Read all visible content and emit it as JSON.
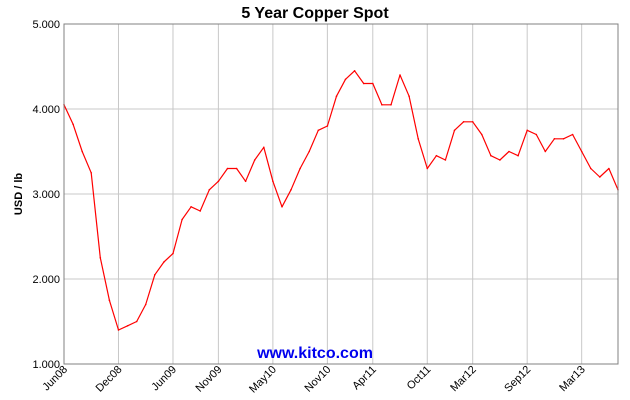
{
  "chart_data": {
    "type": "line",
    "title": "5 Year Copper Spot",
    "xlabel": "",
    "ylabel": "USD / lb",
    "ylim": [
      1.0,
      5.0
    ],
    "yticks": [
      "1.000",
      "2.000",
      "3.000",
      "4.000",
      "5.000"
    ],
    "xlim": [
      "2008-06",
      "2013-07"
    ],
    "xticks": [
      "Jun08",
      "Dec08",
      "Jun09",
      "Nov09",
      "May10",
      "Nov10",
      "Apr11",
      "Oct11",
      "Mar12",
      "Sep12",
      "Mar13"
    ],
    "grid": true,
    "line_color": "#ff0000",
    "series": [
      {
        "name": "",
        "x": [
          "2008-06",
          "2008-07",
          "2008-08",
          "2008-09",
          "2008-10",
          "2008-11",
          "2008-12",
          "2009-01",
          "2009-02",
          "2009-03",
          "2009-04",
          "2009-05",
          "2009-06",
          "2009-07",
          "2009-08",
          "2009-09",
          "2009-10",
          "2009-11",
          "2009-12",
          "2010-01",
          "2010-02",
          "2010-03",
          "2010-04",
          "2010-05",
          "2010-06",
          "2010-07",
          "2010-08",
          "2010-09",
          "2010-10",
          "2010-11",
          "2010-12",
          "2011-01",
          "2011-02",
          "2011-03",
          "2011-04",
          "2011-05",
          "2011-06",
          "2011-07",
          "2011-08",
          "2011-09",
          "2011-10",
          "2011-11",
          "2011-12",
          "2012-01",
          "2012-02",
          "2012-03",
          "2012-04",
          "2012-05",
          "2012-06",
          "2012-07",
          "2012-08",
          "2012-09",
          "2012-10",
          "2012-11",
          "2012-12",
          "2013-01",
          "2013-02",
          "2013-03",
          "2013-04",
          "2013-05",
          "2013-06",
          "2013-07"
        ],
        "values": [
          4.05,
          3.82,
          3.5,
          3.25,
          2.25,
          1.75,
          1.4,
          1.45,
          1.5,
          1.7,
          2.05,
          2.2,
          2.3,
          2.7,
          2.85,
          2.8,
          3.05,
          3.15,
          3.3,
          3.3,
          3.15,
          3.4,
          3.55,
          3.15,
          2.85,
          3.05,
          3.3,
          3.5,
          3.75,
          3.8,
          4.15,
          4.35,
          4.45,
          4.3,
          4.3,
          4.05,
          4.05,
          4.4,
          4.15,
          3.65,
          3.3,
          3.45,
          3.4,
          3.75,
          3.85,
          3.85,
          3.7,
          3.45,
          3.4,
          3.5,
          3.45,
          3.75,
          3.7,
          3.5,
          3.65,
          3.65,
          3.7,
          3.5,
          3.3,
          3.2,
          3.3,
          3.05
        ]
      }
    ]
  },
  "watermark": "www.kitco.com",
  "colors": {
    "line": "#ff0000",
    "grid": "#c8c8c8",
    "frame": "#808080",
    "watermark": "#0000ee"
  }
}
